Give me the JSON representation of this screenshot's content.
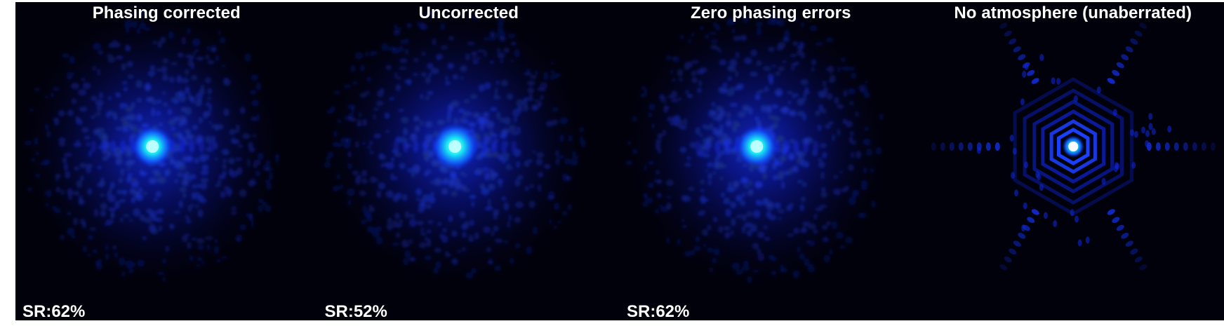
{
  "panels": [
    {
      "title": "Phasing corrected",
      "strehl_label": "SR:62%",
      "psf": "atmospheric-halo"
    },
    {
      "title": "Uncorrected",
      "strehl_label": "SR:52%",
      "psf": "atmospheric-halo"
    },
    {
      "title": "Zero phasing errors",
      "strehl_label": "SR:62%",
      "psf": "atmospheric-halo"
    },
    {
      "title": "No atmosphere (unaberrated)",
      "strehl_label": "",
      "psf": "diffraction-limited-hexagonal"
    }
  ],
  "colors": {
    "background": "#01010c",
    "halo": "#0a1dd6",
    "core": "#18e8f2",
    "text": "#ffffff"
  }
}
